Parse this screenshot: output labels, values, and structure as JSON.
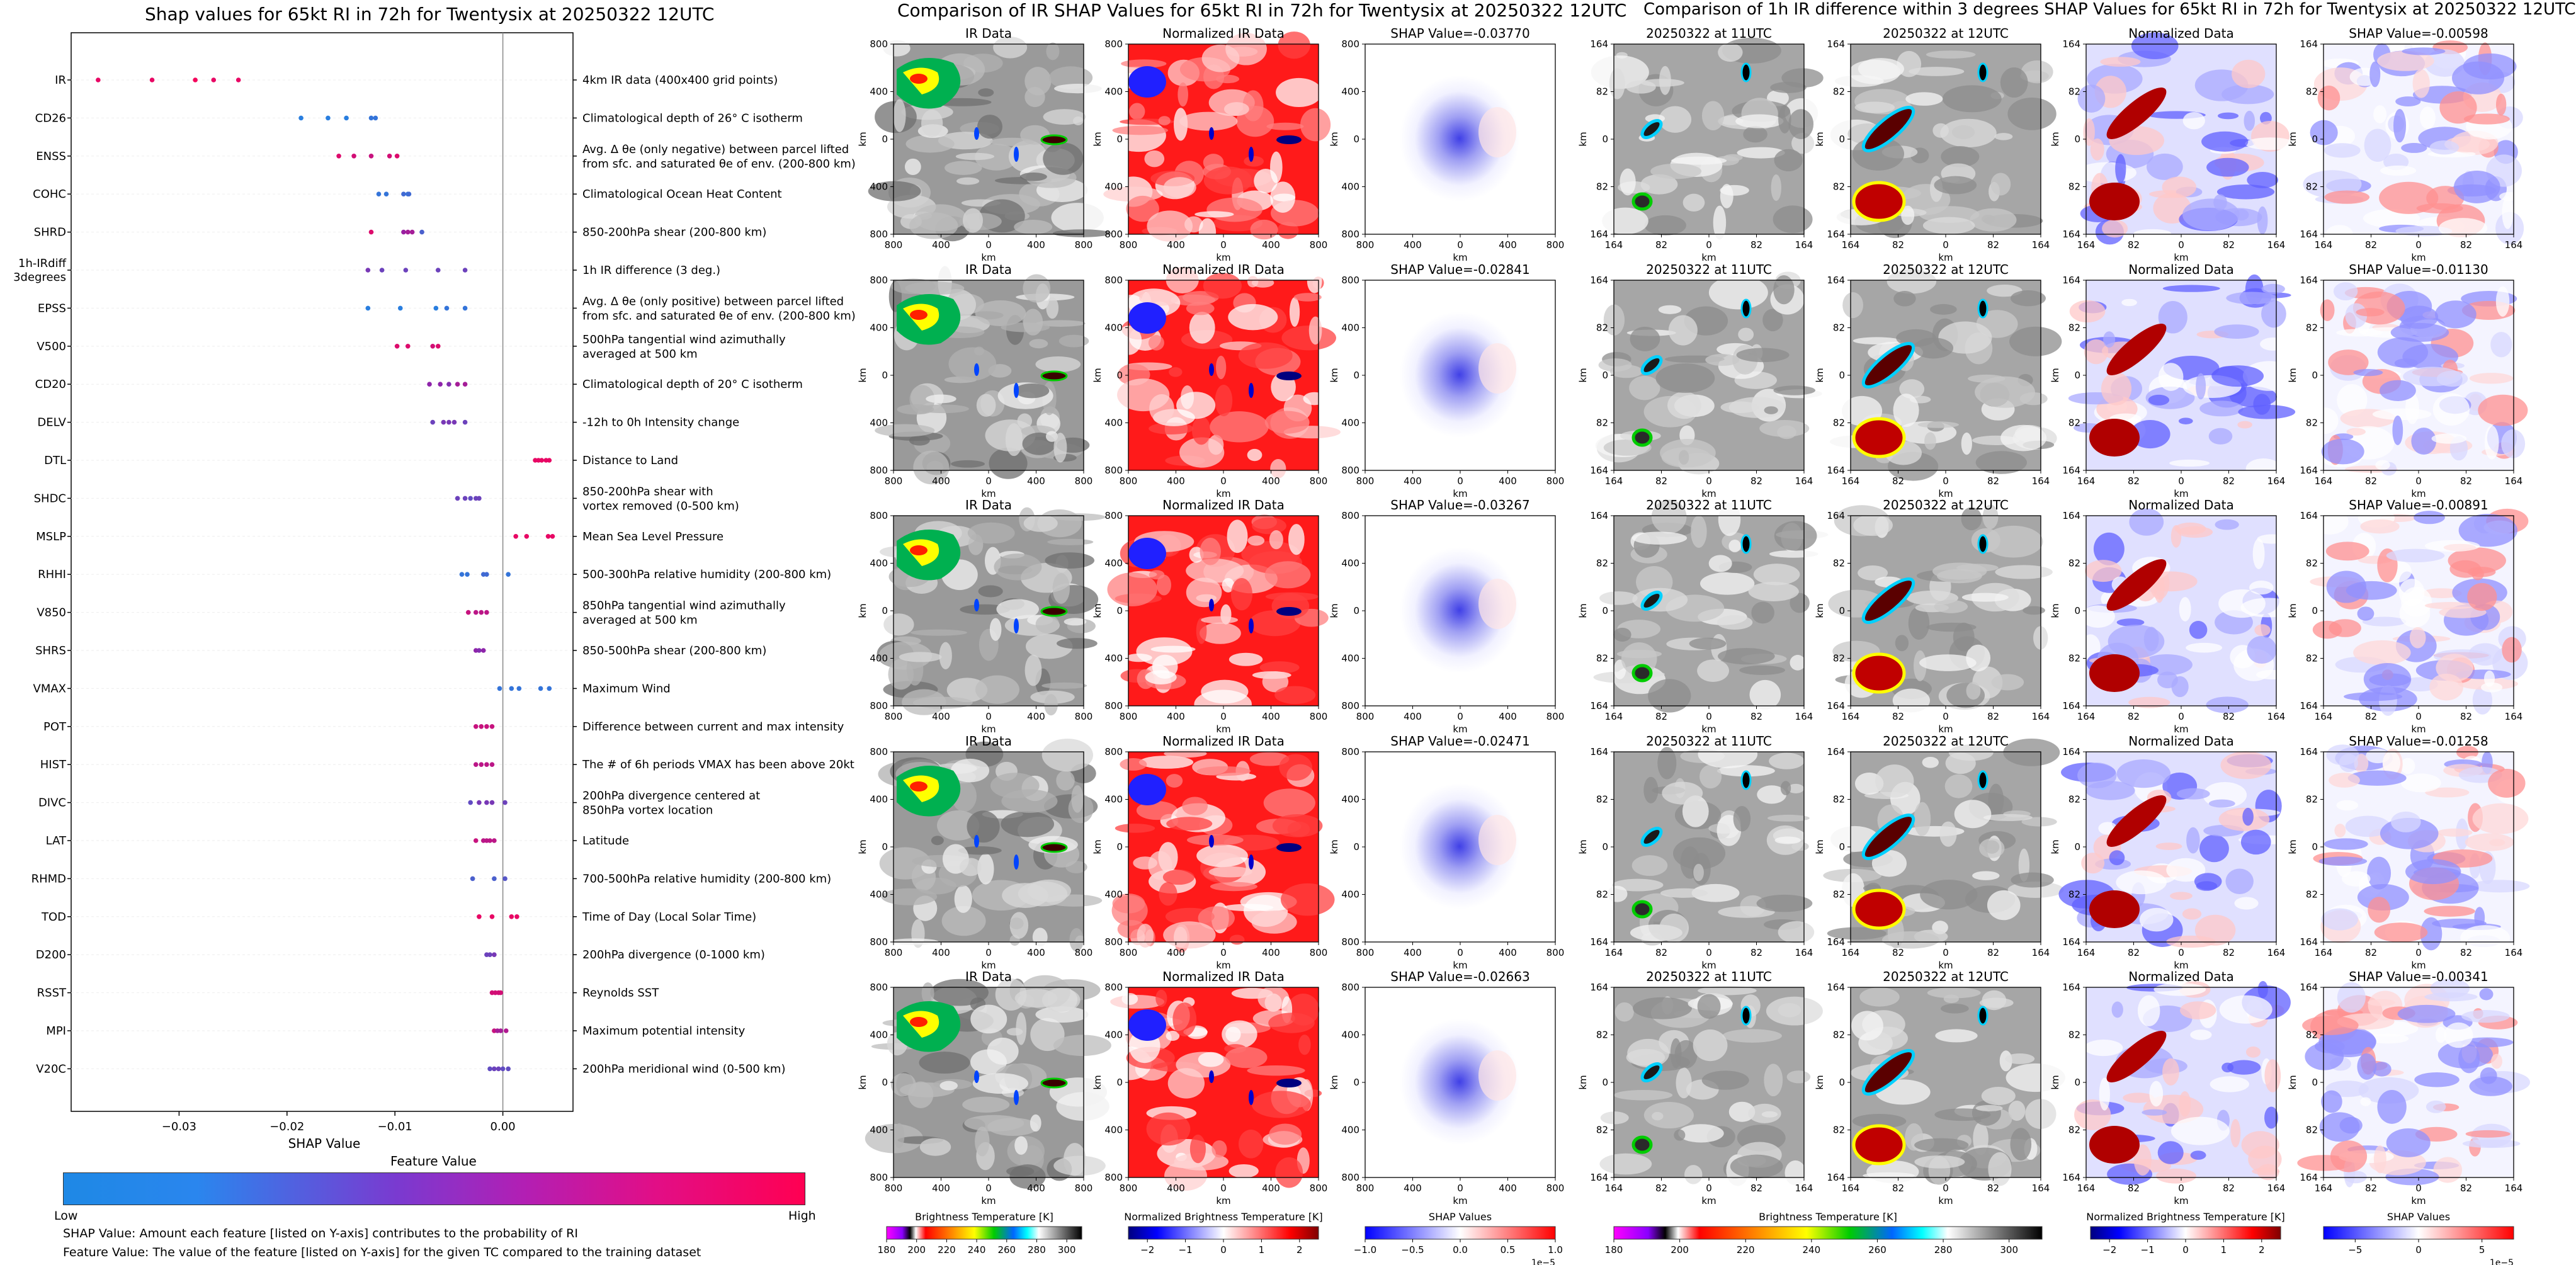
{
  "left_chart": {
    "title": "Shap values for 65kt RI in 72h for Twentysix at 20250322 12UTC",
    "xlabel": "SHAP Value",
    "colorbar": {
      "label": "Feature Value",
      "low": "Low",
      "high": "High"
    },
    "notes": [
      "SHAP Value: Amount each feature [listed on Y-axis] contributes to the probability of RI",
      "Feature Value: The value of the feature [listed on Y-axis] for the given TC compared to the training dataset"
    ]
  },
  "chart_data": [
    {
      "type": "scatter",
      "title": "Shap values for 65kt RI in 72h for Twentysix at 20250322 12UTC",
      "xlabel": "SHAP Value",
      "ylabel": "",
      "xlim": [
        -0.04,
        0.0065
      ],
      "xticks": [
        -0.03,
        -0.02,
        -0.01,
        0.0
      ],
      "xtick_labels": [
        "−0.03",
        "−0.02",
        "−0.01",
        "0.00"
      ],
      "color_scale": {
        "low": "#1e88e5",
        "mid": "#8e24aa",
        "high": "#ff0052"
      },
      "features": [
        {
          "name": "IR",
          "desc": [
            "4km IR data (400x400 grid points)"
          ],
          "points": [
            [
              -0.0375,
              0.9
            ],
            [
              -0.0325,
              0.9
            ],
            [
              -0.0285,
              0.95
            ],
            [
              -0.0268,
              0.9
            ],
            [
              -0.0245,
              0.9
            ]
          ]
        },
        {
          "name": "CD26",
          "desc": [
            "Climatological depth of 26° C isotherm"
          ],
          "points": [
            [
              -0.0187,
              0.05
            ],
            [
              -0.0162,
              0.05
            ],
            [
              -0.0145,
              0.05
            ],
            [
              -0.0122,
              0.1
            ],
            [
              -0.0118,
              0.1
            ]
          ]
        },
        {
          "name": "ENSS",
          "desc": [
            "Avg. Δ θe (only negative) between parcel lifted",
            "from sfc. and saturated θe of env. (200-800 km)"
          ],
          "points": [
            [
              -0.0152,
              0.85
            ],
            [
              -0.0138,
              0.8
            ],
            [
              -0.0122,
              0.75
            ],
            [
              -0.0105,
              0.8
            ],
            [
              -0.0098,
              0.85
            ]
          ]
        },
        {
          "name": "COHC",
          "desc": [
            "Climatological Ocean Heat Content"
          ],
          "points": [
            [
              -0.0115,
              0.1
            ],
            [
              -0.0108,
              0.1
            ],
            [
              -0.0092,
              0.15
            ],
            [
              -0.0088,
              0.1
            ],
            [
              -0.0087,
              0.15
            ]
          ]
        },
        {
          "name": "SHRD",
          "desc": [
            "850-200hPa shear (200-800 km)"
          ],
          "points": [
            [
              -0.0122,
              0.85
            ],
            [
              -0.0092,
              0.55
            ],
            [
              -0.0088,
              0.6
            ],
            [
              -0.0084,
              0.6
            ],
            [
              -0.0075,
              0.2
            ]
          ]
        },
        {
          "name": "1h-IRdiff\n3degrees",
          "desc": [
            "1h IR difference (3 deg.)"
          ],
          "points": [
            [
              -0.0125,
              0.4
            ],
            [
              -0.0112,
              0.35
            ],
            [
              -0.009,
              0.35
            ],
            [
              -0.006,
              0.35
            ],
            [
              -0.0035,
              0.35
            ]
          ]
        },
        {
          "name": "EPSS",
          "desc": [
            "Avg. Δ θe (only positive) between parcel lifted",
            "from sfc. and saturated θe of env. (200-800 km)"
          ],
          "points": [
            [
              -0.0125,
              0.05
            ],
            [
              -0.0095,
              0.05
            ],
            [
              -0.0062,
              0.05
            ],
            [
              -0.0052,
              0.1
            ],
            [
              -0.0035,
              0.1
            ]
          ]
        },
        {
          "name": "V500",
          "desc": [
            "500hPa tangential wind azimuthally",
            "averaged at 500 km"
          ],
          "points": [
            [
              -0.0098,
              0.85
            ],
            [
              -0.0088,
              0.85
            ],
            [
              -0.0065,
              0.8
            ],
            [
              -0.006,
              0.85
            ]
          ]
        },
        {
          "name": "CD20",
          "desc": [
            "Climatological depth of 20° C isotherm"
          ],
          "points": [
            [
              -0.0068,
              0.5
            ],
            [
              -0.0058,
              0.5
            ],
            [
              -0.005,
              0.45
            ],
            [
              -0.0042,
              0.6
            ],
            [
              -0.0035,
              0.6
            ]
          ]
        },
        {
          "name": "DELV",
          "desc": [
            "-12h to 0h Intensity change"
          ],
          "points": [
            [
              -0.0065,
              0.35
            ],
            [
              -0.0055,
              0.4
            ],
            [
              -0.005,
              0.4
            ],
            [
              -0.0045,
              0.4
            ],
            [
              -0.0035,
              0.35
            ]
          ]
        },
        {
          "name": "DTL",
          "desc": [
            "Distance to Land"
          ],
          "points": [
            [
              0.003,
              0.9
            ],
            [
              0.0033,
              0.9
            ],
            [
              0.0036,
              0.9
            ],
            [
              0.004,
              0.9
            ],
            [
              0.0043,
              0.9
            ]
          ]
        },
        {
          "name": "SHDC",
          "desc": [
            "850-200hPa shear with",
            "vortex removed (0-500 km)"
          ],
          "points": [
            [
              -0.0042,
              0.35
            ],
            [
              -0.0035,
              0.35
            ],
            [
              -0.003,
              0.3
            ],
            [
              -0.0025,
              0.35
            ],
            [
              -0.0022,
              0.35
            ]
          ]
        },
        {
          "name": "MSLP",
          "desc": [
            "Mean Sea Level Pressure"
          ],
          "points": [
            [
              0.0012,
              0.9
            ],
            [
              0.0022,
              0.9
            ],
            [
              0.0042,
              0.9
            ],
            [
              0.0046,
              0.9
            ]
          ]
        },
        {
          "name": "RHHI",
          "desc": [
            "500-300hPa relative humidity (200-800 km)"
          ],
          "points": [
            [
              -0.0038,
              0.1
            ],
            [
              -0.0033,
              0.1
            ],
            [
              -0.0018,
              0.15
            ],
            [
              -0.0015,
              0.15
            ],
            [
              0.0005,
              0.1
            ]
          ]
        },
        {
          "name": "V850",
          "desc": [
            "850hPa tangential wind azimuthally",
            "averaged at 500 km"
          ],
          "points": [
            [
              -0.0032,
              0.75
            ],
            [
              -0.0025,
              0.7
            ],
            [
              -0.002,
              0.7
            ],
            [
              -0.0015,
              0.7
            ]
          ]
        },
        {
          "name": "SHRS",
          "desc": [
            "850-500hPa shear (200-800 km)"
          ],
          "points": [
            [
              -0.0025,
              0.5
            ],
            [
              -0.0022,
              0.45
            ],
            [
              -0.0018,
              0.5
            ]
          ]
        },
        {
          "name": "VMAX",
          "desc": [
            "Maximum Wind"
          ],
          "points": [
            [
              -0.0003,
              0.1
            ],
            [
              0.0008,
              0.1
            ],
            [
              0.0015,
              0.1
            ],
            [
              0.0035,
              0.1
            ],
            [
              0.0043,
              0.1
            ]
          ]
        },
        {
          "name": "POT",
          "desc": [
            "Difference between current and max intensity"
          ],
          "points": [
            [
              -0.0025,
              0.75
            ],
            [
              -0.002,
              0.75
            ],
            [
              -0.0015,
              0.75
            ],
            [
              -0.001,
              0.75
            ]
          ]
        },
        {
          "name": "HIST",
          "desc": [
            "The # of 6h periods VMAX has been above 20kt"
          ],
          "points": [
            [
              -0.0025,
              0.7
            ],
            [
              -0.002,
              0.7
            ],
            [
              -0.0015,
              0.7
            ],
            [
              -0.001,
              0.7
            ]
          ]
        },
        {
          "name": "DIVC",
          "desc": [
            "200hPa divergence centered at",
            "850hPa vortex location"
          ],
          "points": [
            [
              -0.003,
              0.3
            ],
            [
              -0.0022,
              0.4
            ],
            [
              -0.0015,
              0.4
            ],
            [
              -0.001,
              0.4
            ],
            [
              0.0002,
              0.35
            ]
          ]
        },
        {
          "name": "LAT",
          "desc": [
            "Latitude"
          ],
          "points": [
            [
              -0.0025,
              0.75
            ],
            [
              -0.0018,
              0.7
            ],
            [
              -0.0015,
              0.7
            ],
            [
              -0.0012,
              0.7
            ],
            [
              -0.0008,
              0.7
            ]
          ]
        },
        {
          "name": "RHMD",
          "desc": [
            "700-500hPa relative humidity (200-800 km)"
          ],
          "points": [
            [
              -0.0028,
              0.2
            ],
            [
              -0.0008,
              0.2
            ],
            [
              0.0002,
              0.25
            ]
          ]
        },
        {
          "name": "TOD",
          "desc": [
            "Time of Day (Local Solar Time)"
          ],
          "points": [
            [
              -0.0022,
              0.9
            ],
            [
              -0.001,
              0.9
            ],
            [
              0.0008,
              0.9
            ],
            [
              0.0013,
              0.9
            ]
          ]
        },
        {
          "name": "D200",
          "desc": [
            "200hPa divergence (0-1000 km)"
          ],
          "points": [
            [
              -0.0015,
              0.35
            ],
            [
              -0.0012,
              0.35
            ],
            [
              -0.0008,
              0.4
            ]
          ]
        },
        {
          "name": "RSST",
          "desc": [
            "Reynolds SST"
          ],
          "points": [
            [
              -0.001,
              0.8
            ],
            [
              -0.0007,
              0.8
            ],
            [
              -0.0004,
              0.8
            ],
            [
              -0.0002,
              0.8
            ]
          ]
        },
        {
          "name": "MPI",
          "desc": [
            "Maximum potential intensity"
          ],
          "points": [
            [
              -0.0008,
              0.75
            ],
            [
              -0.0005,
              0.6
            ],
            [
              -0.0002,
              0.6
            ],
            [
              0.0003,
              0.65
            ]
          ]
        },
        {
          "name": "V20C",
          "desc": [
            "200hPa meridional wind (0-500 km)"
          ],
          "points": [
            [
              -0.0012,
              0.3
            ],
            [
              -0.0008,
              0.35
            ],
            [
              -0.0004,
              0.35
            ],
            [
              0.0,
              0.3
            ],
            [
              0.0005,
              0.3
            ]
          ]
        }
      ]
    },
    {
      "type": "heatmap",
      "title": "Comparison of IR SHAP Values for 65kt RI in 72h for Twentysix at 20250322 12UTC",
      "columns": [
        "IR Data",
        "Normalized IR Data",
        "SHAP Value"
      ],
      "xlabel": "km",
      "ylabel": "km",
      "xticks": [
        "800",
        "400",
        "0",
        "400",
        "800"
      ],
      "yticks": [
        "800",
        "400",
        "0",
        "400",
        "800"
      ],
      "shap_values": [
        "-0.03770",
        "-0.02841",
        "-0.03267",
        "-0.02471",
        "-0.02663"
      ],
      "colorbars": [
        {
          "label": "Brightness Temperature [K]",
          "ticks": [
            "180",
            "200",
            "220",
            "240",
            "260",
            "280",
            "300"
          ],
          "range": [
            180,
            310
          ]
        },
        {
          "label": "Normalized Brightness Temperature [K]",
          "ticks": [
            "−2",
            "−1",
            "0",
            "1",
            "2"
          ],
          "range": [
            -2.5,
            2.5
          ]
        },
        {
          "label": "SHAP Values",
          "ticks": [
            "−1.0",
            "−0.5",
            "0.0",
            "0.5",
            "1.0"
          ],
          "range": [
            -1.0,
            1.0
          ],
          "scale_label": "1e−5"
        }
      ]
    },
    {
      "type": "heatmap",
      "title": "Comparison of 1h IR difference within 3 degrees SHAP Values for 65kt RI in 72h for Twentysix at 20250322 12UTC",
      "columns": [
        "20250322 at 11UTC",
        "20250322 at 12UTC",
        "Normalized Data",
        "SHAP Value"
      ],
      "xlabel": "km",
      "ylabel": "km",
      "xticks": [
        "164",
        "82",
        "0",
        "82",
        "164"
      ],
      "yticks": [
        "164",
        "82",
        "0",
        "82",
        "164"
      ],
      "shap_values": [
        "-0.00598",
        "-0.01130",
        "-0.00891",
        "-0.01258",
        "-0.00341"
      ],
      "colorbars": [
        {
          "label": "Brightness Temperature [K]",
          "ticks": [
            "180",
            "200",
            "220",
            "240",
            "260",
            "280",
            "300"
          ],
          "range": [
            180,
            310
          ]
        },
        {
          "label": "Normalized Brightness Temperature [K]",
          "ticks": [
            "−2",
            "−1",
            "0",
            "1",
            "2"
          ],
          "range": [
            -2.5,
            2.5
          ]
        },
        {
          "label": "SHAP Values",
          "ticks": [
            "−5",
            "0",
            "5"
          ],
          "range": [
            -7.5,
            7.5
          ],
          "scale_label": "1e−5"
        }
      ]
    }
  ],
  "shap_label_prefix": "SHAP Value="
}
